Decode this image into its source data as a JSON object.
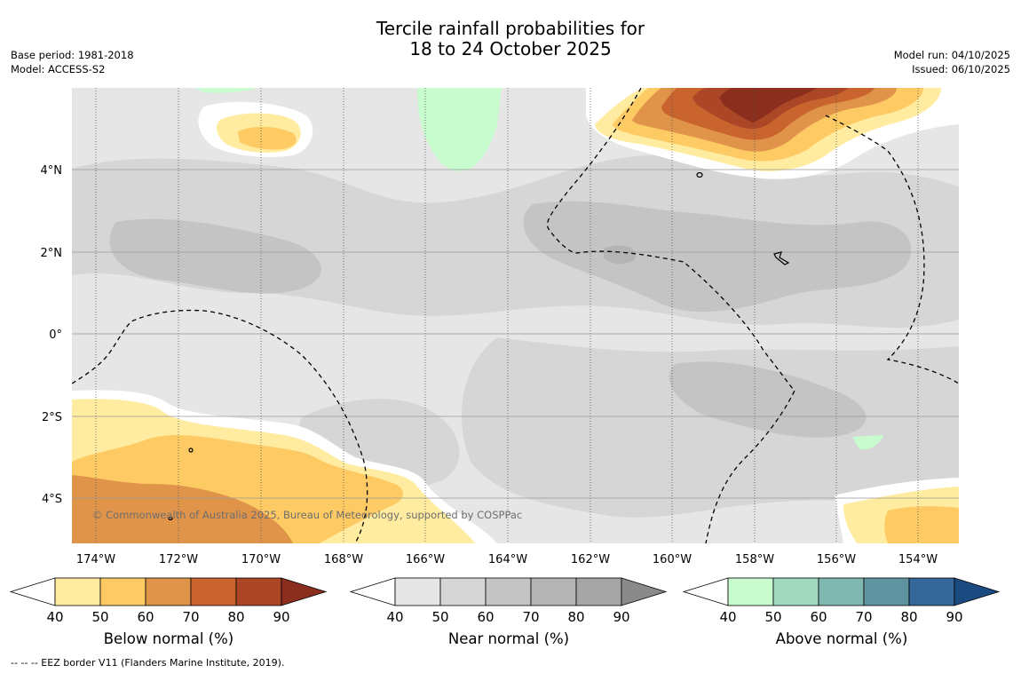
{
  "title": {
    "line1": "Tercile rainfall probabilities for",
    "line2": "18 to 24 October 2025"
  },
  "meta_left": {
    "base_period": "Base period: 1981-2018",
    "model": "Model: ACCESS-S2"
  },
  "meta_right": {
    "model_run": "Model run: 04/10/2025",
    "issued": "Issued: 06/10/2025"
  },
  "map": {
    "lon_labels": [
      "174°W",
      "172°W",
      "170°W",
      "168°W",
      "166°W",
      "164°W",
      "162°W",
      "160°W",
      "158°W",
      "156°W",
      "154°W"
    ],
    "lat_labels": [
      "4°N",
      "2°N",
      "0°",
      "2°S",
      "4°S"
    ],
    "copyright": "© Commonwealth of Australia 2025, Bureau of Meteorology, supported by COSPPac"
  },
  "colorbars": [
    {
      "name": "below",
      "title": "Below normal (%)",
      "ticks": [
        "40",
        "50",
        "60",
        "70",
        "80",
        "90"
      ],
      "colors": [
        "#ffeca0",
        "#fdca63",
        "#e0944a",
        "#c9642f",
        "#ab4726",
        "#8c2e1e"
      ]
    },
    {
      "name": "near",
      "title": "Near normal (%)",
      "ticks": [
        "40",
        "50",
        "60",
        "70",
        "80",
        "90"
      ],
      "colors": [
        "#e6e6e6",
        "#d6d6d6",
        "#c4c4c4",
        "#b4b4b4",
        "#a5a5a5",
        "#8a8a8a"
      ]
    },
    {
      "name": "above",
      "title": "Above normal (%)",
      "ticks": [
        "40",
        "50",
        "60",
        "70",
        "80",
        "90"
      ],
      "colors": [
        "#c8fbce",
        "#a1d9c0",
        "#80b8b1",
        "#5f939f",
        "#35679a",
        "#1a4a80"
      ]
    }
  ],
  "footnote": "--  --  -- EEZ border V11 (Flanders Marine Institute, 2019)."
}
